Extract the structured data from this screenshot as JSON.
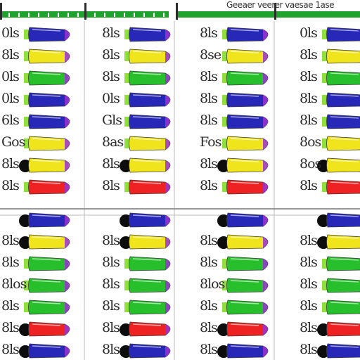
{
  "header": {
    "text": "Geeaer veerer vaesae 1ase",
    "green": "#1fa22e"
  },
  "colors": {
    "blue": "#2727b8",
    "yellow": "#f0e51c",
    "green": "#27c02c",
    "red": "#ee2222",
    "purple": "#9b33d3",
    "lime": "#8fe03a",
    "dot": "#0d0d0d",
    "grid": "#b9b9b9"
  },
  "icon": "bullet-row-icon",
  "grid": {
    "top_rows": [
      {
        "glyphs": [
          "0ls",
          "8ls",
          "8ls",
          "0ls"
        ],
        "color": "blue",
        "dot": false
      },
      {
        "glyphs": [
          "8ls",
          "8ls",
          "8se",
          "8ls"
        ],
        "color": "yellow",
        "dot": false
      },
      {
        "glyphs": [
          "0ls",
          "8ls",
          "8ls",
          "8ls"
        ],
        "color": "green",
        "dot": false
      },
      {
        "glyphs": [
          "0ls",
          "0ls",
          "8ls",
          "8ls"
        ],
        "color": "blue",
        "dot": false
      },
      {
        "glyphs": [
          "6ls",
          "Gls",
          "8ls",
          "8ls"
        ],
        "color": "blue",
        "dot": false
      },
      {
        "glyphs": [
          "Gos",
          "8as",
          "Fos",
          "8os"
        ],
        "color": "yellow",
        "dot": false
      },
      {
        "glyphs": [
          "8ls",
          "8ls",
          "8ls",
          "8os"
        ],
        "color": "yellow",
        "dot": true
      },
      {
        "glyphs": [
          "8ls",
          "8ls",
          "8ls",
          "8ls"
        ],
        "color": "red",
        "dot": false
      }
    ],
    "bottom_rows": [
      {
        "glyphs": [
          "",
          "",
          "",
          ""
        ],
        "color": "blue",
        "dot": true
      },
      {
        "glyphs": [
          "8ls",
          "8ls",
          "8ls",
          "8ls"
        ],
        "color": "yellow",
        "dot": true
      },
      {
        "glyphs": [
          "8ls",
          "8ls",
          "8ls",
          "8ls"
        ],
        "color": "green",
        "dot": false
      },
      {
        "glyphs": [
          "8los",
          "8ls",
          "8los",
          "8ls"
        ],
        "color": "green",
        "dot": false
      },
      {
        "glyphs": [
          "8ls",
          "8ls",
          "8ls",
          "8ls"
        ],
        "color": "green",
        "dot": false
      },
      {
        "glyphs": [
          "8ls",
          "8ls",
          "8ls",
          "8ls"
        ],
        "color": "red",
        "dot": true
      },
      {
        "glyphs": [
          "8ls",
          "8ls",
          "8ls",
          "8ls"
        ],
        "color": "blue",
        "dot": true
      }
    ]
  }
}
